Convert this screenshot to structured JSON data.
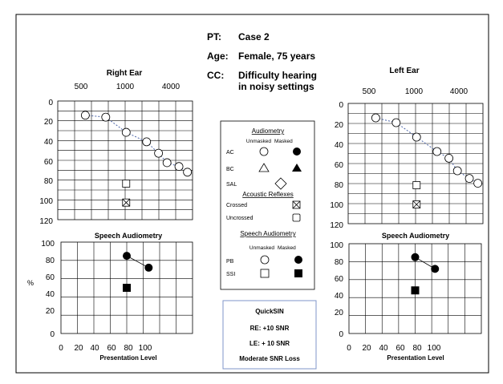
{
  "header": {
    "pt_label": "PT:",
    "pt_value": "Case 2",
    "age_label": "Age:",
    "age_value": "Female, 75 years",
    "cc_label": "CC:",
    "cc_value_line1": "Difficulty hearing",
    "cc_value_line2": "in noisy settings"
  },
  "right_ear": {
    "title": "Right Ear",
    "freq_labels": [
      "500",
      "1000",
      "4000"
    ],
    "db_labels": [
      "0",
      "20",
      "40",
      "60",
      "80",
      "100",
      "120"
    ],
    "ac_unmasked": [
      {
        "hz": 250,
        "db": 10
      },
      {
        "hz": 500,
        "db": 12
      },
      {
        "hz": 1000,
        "db": 28
      },
      {
        "hz": 2000,
        "db": 38
      },
      {
        "hz": 3000,
        "db": 50
      },
      {
        "hz": 4000,
        "db": 60
      },
      {
        "hz": 6000,
        "db": 64
      },
      {
        "hz": 8000,
        "db": 70
      }
    ],
    "acoustic_reflex_uncrossed": {
      "hz": 1000,
      "db": 82
    },
    "acoustic_reflex_crossed": {
      "hz": 1000,
      "db": 102
    },
    "speech": {
      "title": "Speech Audiometry",
      "y_axis_label": "%",
      "x_axis_label": "Presentation Level",
      "y_labels": [
        "100",
        "80",
        "60",
        "40",
        "20",
        "0"
      ],
      "x_labels": [
        "0",
        "20",
        "40",
        "60",
        "80",
        "100"
      ],
      "pb_masked": [
        {
          "level": 60,
          "percent": 85
        },
        {
          "level": 80,
          "percent": 72
        }
      ],
      "ssi_masked": [
        {
          "level": 60,
          "percent": 50
        }
      ]
    }
  },
  "left_ear": {
    "title": "Left Ear",
    "freq_labels": [
      "500",
      "1000",
      "4000"
    ],
    "db_labels": [
      "0",
      "20",
      "40",
      "60",
      "80",
      "100",
      "120"
    ],
    "ac_unmasked": [
      {
        "hz": 250,
        "db": 10
      },
      {
        "hz": 500,
        "db": 15
      },
      {
        "hz": 1000,
        "db": 30
      },
      {
        "hz": 2000,
        "db": 45
      },
      {
        "hz": 3000,
        "db": 52
      },
      {
        "hz": 4000,
        "db": 65
      },
      {
        "hz": 6000,
        "db": 73
      },
      {
        "hz": 8000,
        "db": 78
      }
    ],
    "acoustic_reflex_uncrossed": {
      "hz": 1000,
      "db": 80
    },
    "acoustic_reflex_crossed": {
      "hz": 1000,
      "db": 100
    },
    "speech": {
      "title": "Speech Audiometry",
      "x_axis_label": "Presentation Level",
      "y_labels": [
        "100",
        "80",
        "60",
        "40",
        "20",
        "0"
      ],
      "x_labels": [
        "0",
        "20",
        "40",
        "60",
        "80",
        "100"
      ],
      "pb_masked": [
        {
          "level": 60,
          "percent": 85
        },
        {
          "level": 78,
          "percent": 72
        }
      ],
      "ssi_masked": [
        {
          "level": 60,
          "percent": 48
        }
      ]
    }
  },
  "legend": {
    "audiometry_title": "Audiometry",
    "unmasked": "Unmasked",
    "masked": "Masked",
    "ac": "AC",
    "bc": "BC",
    "sal": "SAL",
    "reflexes_title": "Acoustic Reflexes",
    "crossed": "Crossed",
    "uncrossed": "Uncrossed",
    "speech_title": "Speech Audiometry",
    "unmasked2": "Unmasked",
    "masked2": "Masked",
    "pb": "PB",
    "ssi": "SSI"
  },
  "quicksin": {
    "title": "QuickSIN",
    "re": "RE: +10 SNR",
    "le": "LE: + 10 SNR",
    "summary": "Moderate SNR Loss"
  },
  "colors": {
    "line": "#000000",
    "connector": "#4a64a8",
    "symbol_fill": "#ffffff",
    "quicksin_border": "#7f96c8"
  }
}
